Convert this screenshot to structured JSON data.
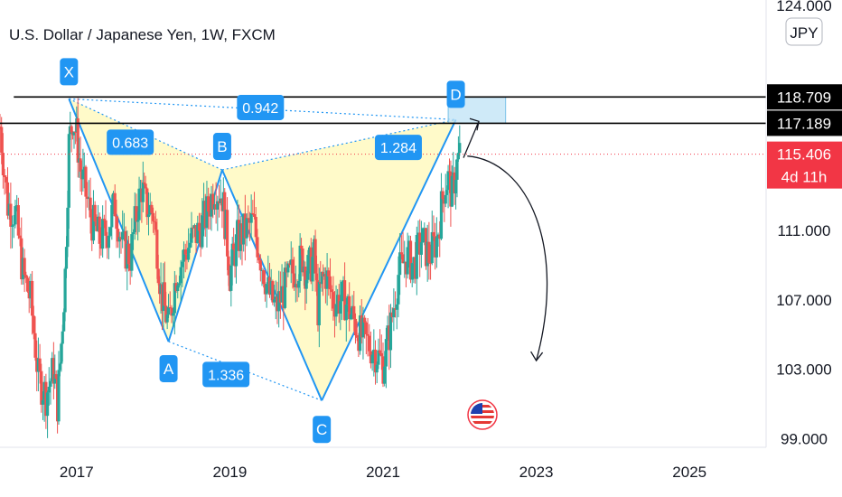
{
  "header": {
    "title": "U.S. Dollar / Japanese Yen, 1W, FXCM"
  },
  "colors": {
    "up": "#26a69a",
    "down": "#ef5350",
    "pattern_line": "#2196f3",
    "pattern_fill": "#fff59d",
    "label_bg": "#2196f3",
    "target_box": "#bfe3f5",
    "last_price": "#f23645",
    "tag_dark": "#000000",
    "gridline": "none"
  },
  "chart_data": {
    "type": "candlestick",
    "symbol": "U.S. Dollar / Japanese Yen",
    "interval": "1W",
    "exchange": "FXCM",
    "currency": "JPY",
    "x_ticks": [
      "2017",
      "2019",
      "2021",
      "2023",
      "2025"
    ],
    "y_ticks": [
      "124.000",
      "111.000",
      "107.000",
      "103.000",
      "99.000"
    ],
    "ylim": [
      98.5,
      124.3
    ],
    "xlim": [
      2016.0,
      2026.0
    ],
    "grid": false,
    "pattern": {
      "type": "harmonic XABCD",
      "points": [
        {
          "name": "X",
          "x": 2016.9,
          "y": 118.6
        },
        {
          "name": "A",
          "x": 2018.2,
          "y": 104.6
        },
        {
          "name": "B",
          "x": 2018.9,
          "y": 114.5
        },
        {
          "name": "C",
          "x": 2020.2,
          "y": 101.2
        },
        {
          "name": "D",
          "x": 2021.95,
          "y": 117.4
        }
      ],
      "ratios": [
        {
          "value": "0.683",
          "x": 2017.7,
          "y": 116.1
        },
        {
          "value": "1.284",
          "x": 2021.2,
          "y": 115.8
        },
        {
          "value": "0.942",
          "x": 2019.4,
          "y": 118.1
        },
        {
          "value": "1.336",
          "x": 2018.95,
          "y": 102.7
        }
      ],
      "target_zone": {
        "x0": 2021.85,
        "x1": 2022.6,
        "y0": 117.189,
        "y1": 118.709
      },
      "projection": [
        {
          "x": 2022.1,
          "y": 115.3
        },
        {
          "x": 2022.9,
          "y": 115.0
        },
        {
          "x": 2023.4,
          "y": 110.0
        },
        {
          "x": 2023.0,
          "y": 103.5
        }
      ]
    },
    "horizontal_lines": [
      118.709,
      117.189
    ],
    "price_tags": [
      {
        "value": "118.709",
        "y": 118.709,
        "style": "dark"
      },
      {
        "value": "117.189",
        "y": 117.189,
        "style": "dark"
      },
      {
        "value": "115.406",
        "y": 115.406,
        "style": "red",
        "sub": "4d 11h"
      }
    ],
    "last_price": 115.406,
    "weekly_close": [
      [
        2016.0,
        117.0
      ],
      [
        2016.1,
        112.5
      ],
      [
        2016.2,
        112.0
      ],
      [
        2016.3,
        108.5
      ],
      [
        2016.4,
        107.0
      ],
      [
        2016.5,
        102.5
      ],
      [
        2016.6,
        101.5
      ],
      [
        2016.7,
        103.0
      ],
      [
        2016.75,
        101.0
      ],
      [
        2016.8,
        104.5
      ],
      [
        2016.85,
        108.5
      ],
      [
        2016.9,
        116.0
      ],
      [
        2016.95,
        117.5
      ],
      [
        2017.0,
        116.5
      ],
      [
        2017.05,
        114.5
      ],
      [
        2017.1,
        113.5
      ],
      [
        2017.2,
        111.5
      ],
      [
        2017.3,
        110.5
      ],
      [
        2017.4,
        111.0
      ],
      [
        2017.5,
        112.5
      ],
      [
        2017.6,
        110.0
      ],
      [
        2017.7,
        109.5
      ],
      [
        2017.8,
        112.5
      ],
      [
        2017.85,
        113.5
      ],
      [
        2017.9,
        112.5
      ],
      [
        2018.0,
        112.0
      ],
      [
        2018.05,
        110.0
      ],
      [
        2018.1,
        107.5
      ],
      [
        2018.15,
        106.5
      ],
      [
        2018.2,
        105.5
      ],
      [
        2018.3,
        108.5
      ],
      [
        2018.4,
        109.5
      ],
      [
        2018.5,
        110.5
      ],
      [
        2018.6,
        111.0
      ],
      [
        2018.7,
        112.0
      ],
      [
        2018.8,
        113.5
      ],
      [
        2018.9,
        113.0
      ],
      [
        2018.95,
        111.0
      ],
      [
        2019.0,
        108.5
      ],
      [
        2019.05,
        109.5
      ],
      [
        2019.1,
        110.5
      ],
      [
        2019.2,
        111.0
      ],
      [
        2019.3,
        111.5
      ],
      [
        2019.4,
        109.5
      ],
      [
        2019.5,
        107.5
      ],
      [
        2019.6,
        106.5
      ],
      [
        2019.7,
        107.5
      ],
      [
        2019.8,
        108.5
      ],
      [
        2019.9,
        109.0
      ],
      [
        2019.95,
        109.5
      ],
      [
        2020.0,
        108.5
      ],
      [
        2020.1,
        109.5
      ],
      [
        2020.15,
        106.5
      ],
      [
        2020.2,
        108.0
      ],
      [
        2020.25,
        108.5
      ],
      [
        2020.35,
        107.0
      ],
      [
        2020.5,
        107.0
      ],
      [
        2020.6,
        106.0
      ],
      [
        2020.7,
        105.0
      ],
      [
        2020.8,
        104.5
      ],
      [
        2020.9,
        104.0
      ],
      [
        2021.0,
        103.3
      ],
      [
        2021.1,
        105.5
      ],
      [
        2021.2,
        108.5
      ],
      [
        2021.3,
        109.5
      ],
      [
        2021.4,
        109.0
      ],
      [
        2021.5,
        110.5
      ],
      [
        2021.6,
        109.5
      ],
      [
        2021.7,
        110.5
      ],
      [
        2021.8,
        113.5
      ],
      [
        2021.85,
        114.0
      ],
      [
        2021.9,
        113.0
      ],
      [
        2021.95,
        114.5
      ],
      [
        2022.0,
        115.4
      ]
    ]
  }
}
